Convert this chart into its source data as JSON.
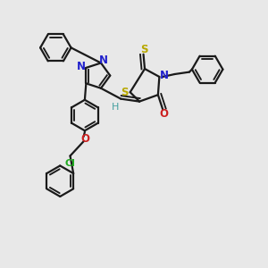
{
  "background_color": "#e8e8e8",
  "line_color": "#1a1a1a",
  "line_width": 1.6,
  "dbo": 0.012,
  "figsize": [
    3.0,
    3.0
  ],
  "dpi": 100,
  "colors": {
    "N": "#2020cc",
    "O": "#cc2020",
    "S": "#b8a800",
    "Cl": "#22aa22",
    "H": "#44a0a0",
    "C": "#1a1a1a"
  }
}
